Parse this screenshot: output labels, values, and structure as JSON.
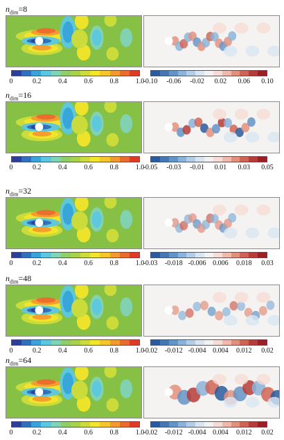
{
  "rows": [
    {
      "label_prefix": "n",
      "label_sub": "dim",
      "label_value": "=8",
      "left_ticks": [
        "0",
        "0.2",
        "0.4",
        "0.6",
        "0.8",
        "1.0"
      ],
      "right_ticks": [
        "-0.10",
        "-0.06",
        "-0.02",
        "0.02",
        "0.06",
        "0.10"
      ]
    },
    {
      "label_prefix": "n",
      "label_sub": "dim",
      "label_value": "=16",
      "left_ticks": [
        "0",
        "0.2",
        "0.4",
        "0.6",
        "0.8",
        "1.0"
      ],
      "right_ticks": [
        "-0.05",
        "-0.03",
        "-0.01",
        "0.01",
        "0.03",
        "0.05"
      ]
    },
    {
      "label_prefix": "n",
      "label_sub": "dim",
      "label_value": "=32",
      "left_ticks": [
        "0",
        "0.2",
        "0.4",
        "0.6",
        "0.8",
        "1.0"
      ],
      "right_ticks": [
        "-0.03",
        "-0.018",
        "-0.006",
        "0.006",
        "0.018",
        "0.03"
      ]
    },
    {
      "label_prefix": "n",
      "label_sub": "dim",
      "label_value": "=48",
      "left_ticks": [
        "0",
        "0.2",
        "0.4",
        "0.6",
        "0.8",
        "1.0"
      ],
      "right_ticks": [
        "-0.02",
        "-0.012",
        "-0.004",
        "0.004",
        "0.012",
        "0.02"
      ]
    },
    {
      "label_prefix": "n",
      "label_sub": "dim",
      "label_value": "=64",
      "left_ticks": [
        "0",
        "0.2",
        "0.4",
        "0.6",
        "0.8",
        "1.0"
      ],
      "right_ticks": [
        "-0.02",
        "-0.012",
        "-0.004",
        "0.004",
        "0.012",
        "0.02"
      ]
    }
  ],
  "colormaps": {
    "rainbow": [
      "#2a3f9c",
      "#2f6fbe",
      "#36a4d9",
      "#5cc7e0",
      "#7fd3b6",
      "#8fce6a",
      "#a8d24c",
      "#cddc3a",
      "#f2e52a",
      "#f6c52a",
      "#f29a2e",
      "#eb6a2e",
      "#dd3a2a"
    ],
    "diverging": [
      "#2c5a9e",
      "#4577b5",
      "#6394c8",
      "#8bb2d8",
      "#b4cde6",
      "#d9e6f2",
      "#f2f2f2",
      "#f6dcd6",
      "#f0b9ab",
      "#e2907e",
      "#cf6456",
      "#b53c38",
      "#9a1f27"
    ]
  },
  "figure_colors": {
    "field_background": "#86c146",
    "error_background": "#f4f3f1",
    "cylinder": "#ffffff"
  }
}
